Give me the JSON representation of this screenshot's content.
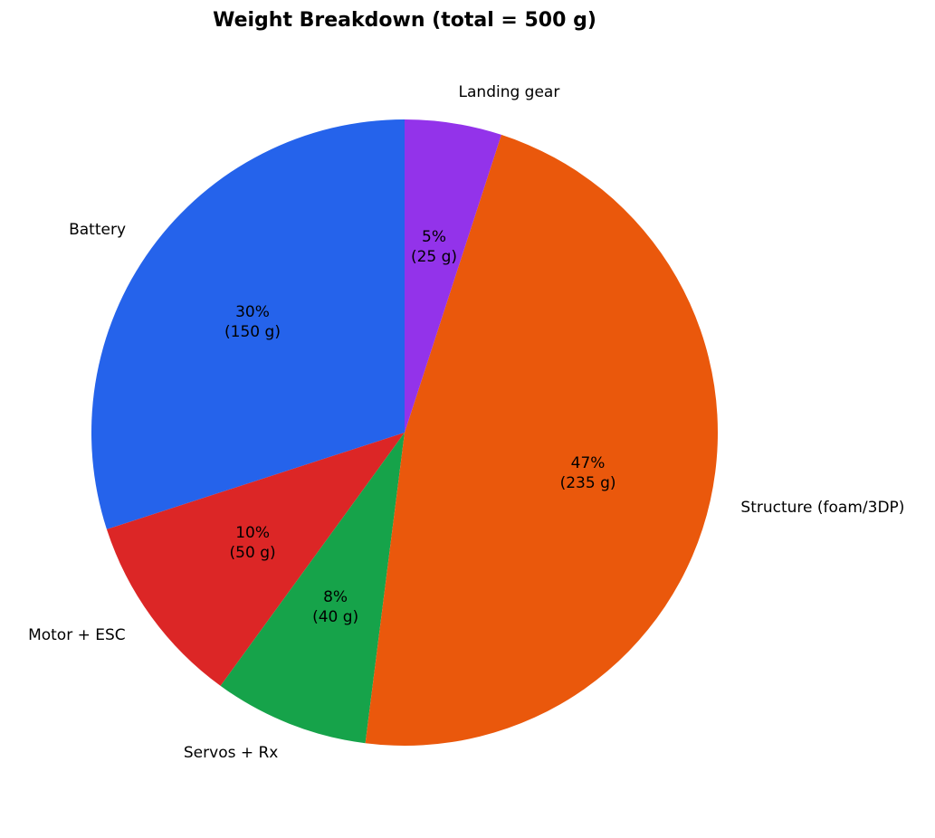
{
  "chart_data": {
    "type": "pie",
    "title": "Weight Breakdown (total = 500 g)",
    "categories": [
      "Battery",
      "Motor + ESC",
      "Servos + Rx",
      "Structure (foam/3DP)",
      "Landing gear"
    ],
    "values": [
      150,
      50,
      40,
      235,
      25
    ],
    "value_labels": [
      "30%\n(150 g)",
      "10%\n(50 g)",
      "8%\n(40 g)",
      "47%\n(235 g)",
      "5%\n(25 g)"
    ],
    "colors": [
      "#2563eb",
      "#dc2626",
      "#16a34a",
      "#ea580c",
      "#9333ea"
    ],
    "start_angle": 90
  }
}
